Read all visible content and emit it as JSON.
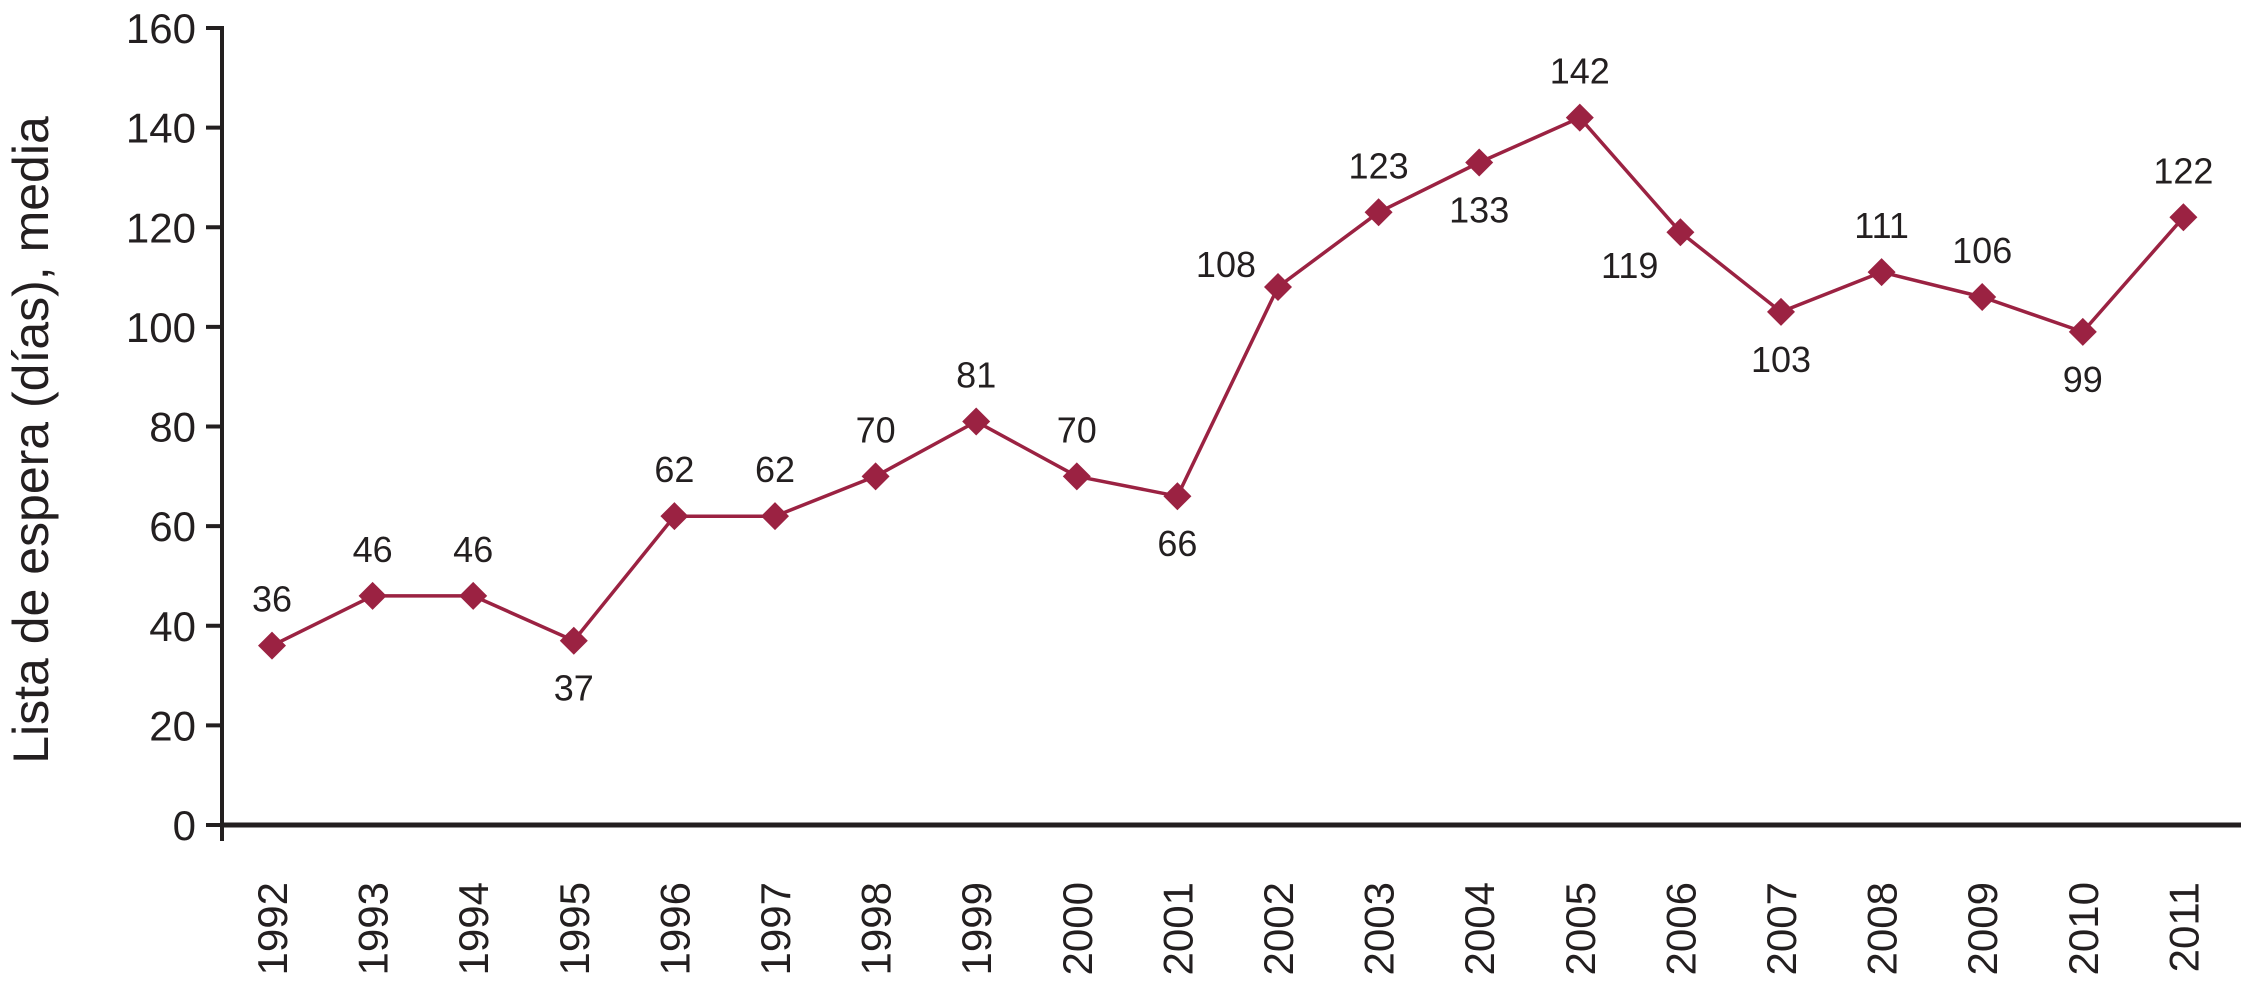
{
  "chart_data": {
    "type": "line",
    "title": "",
    "xlabel": "",
    "ylabel": "Lista de espera (días), media",
    "ylim": [
      0,
      160
    ],
    "yticks": [
      0,
      20,
      40,
      60,
      80,
      100,
      120,
      140,
      160
    ],
    "grid": false,
    "legend": "none",
    "color": "#9b2242",
    "categories": [
      "1992",
      "1993",
      "1994",
      "1995",
      "1996",
      "1997",
      "1998",
      "1999",
      "2000",
      "2001",
      "2002",
      "2003",
      "2004",
      "2005",
      "2006",
      "2007",
      "2008",
      "2009",
      "2010",
      "2011"
    ],
    "series": [
      {
        "values": [
          36,
          46,
          46,
          37,
          62,
          62,
          70,
          81,
          70,
          66,
          108,
          123,
          133,
          142,
          119,
          103,
          111,
          106,
          99,
          122
        ],
        "labels": [
          "36",
          "46",
          "46",
          "37",
          "62",
          "62",
          "70",
          "81",
          "70",
          "66",
          "108",
          "123",
          "133",
          "142",
          "119",
          "103",
          "111",
          "106",
          "99",
          "122"
        ],
        "label_positions": [
          "above",
          "above",
          "above",
          "below",
          "above",
          "above",
          "above",
          "above",
          "above",
          "below",
          "left",
          "above",
          "below",
          "above",
          "below-left",
          "below",
          "above",
          "above",
          "below",
          "above"
        ]
      }
    ]
  }
}
